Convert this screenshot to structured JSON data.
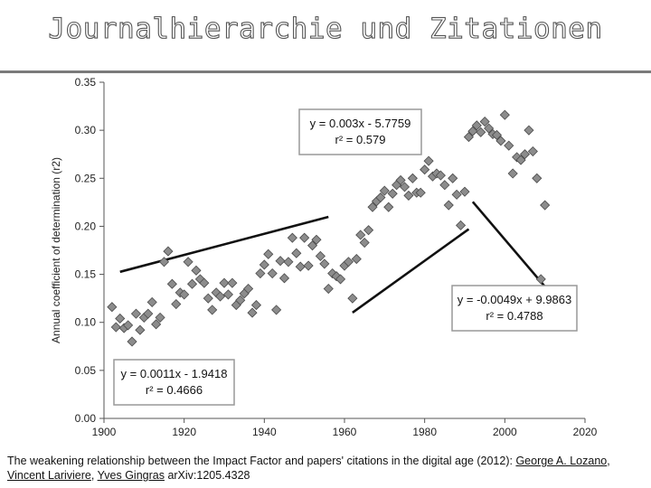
{
  "slide": {
    "title": "Journalhierarchie und Zitationen"
  },
  "caption": {
    "text": "The weakening relationship between the Impact Factor and papers' citations in the digital age (2012): ",
    "link_text": "George A. Lozano",
    "sep1": ", ",
    "author2": "Vincent Lariviere",
    "sep2": ", ",
    "author3": "Yves Gingras",
    "suffix": " arXiv:1205.4328"
  },
  "chart_data": {
    "type": "scatter",
    "title": "",
    "xlabel": "",
    "ylabel": "Annual coefficient of determination (r2)",
    "xlim": [
      1900,
      2020
    ],
    "ylim": [
      0.0,
      0.35
    ],
    "x_ticks": [
      "1900",
      "1920",
      "1940",
      "1960",
      "1980",
      "2000",
      "2020"
    ],
    "y_ticks": [
      "0.00",
      "0.05",
      "0.10",
      "0.15",
      "0.20",
      "0.25",
      "0.30",
      "0.35"
    ],
    "grid": false,
    "marker_color": "#8c8c8c",
    "points": [
      [
        1902,
        0.116
      ],
      [
        1903,
        0.095
      ],
      [
        1904,
        0.104
      ],
      [
        1905,
        0.094
      ],
      [
        1906,
        0.097
      ],
      [
        1907,
        0.08
      ],
      [
        1908,
        0.109
      ],
      [
        1909,
        0.092
      ],
      [
        1910,
        0.105
      ],
      [
        1911,
        0.109
      ],
      [
        1912,
        0.121
      ],
      [
        1913,
        0.098
      ],
      [
        1914,
        0.105
      ],
      [
        1915,
        0.163
      ],
      [
        1916,
        0.174
      ],
      [
        1917,
        0.14
      ],
      [
        1918,
        0.119
      ],
      [
        1919,
        0.131
      ],
      [
        1920,
        0.129
      ],
      [
        1921,
        0.163
      ],
      [
        1922,
        0.14
      ],
      [
        1923,
        0.154
      ],
      [
        1924,
        0.145
      ],
      [
        1925,
        0.141
      ],
      [
        1926,
        0.125
      ],
      [
        1927,
        0.113
      ],
      [
        1928,
        0.131
      ],
      [
        1929,
        0.127
      ],
      [
        1930,
        0.141
      ],
      [
        1931,
        0.129
      ],
      [
        1932,
        0.141
      ],
      [
        1933,
        0.118
      ],
      [
        1934,
        0.123
      ],
      [
        1935,
        0.13
      ],
      [
        1936,
        0.135
      ],
      [
        1937,
        0.11
      ],
      [
        1938,
        0.118
      ],
      [
        1939,
        0.151
      ],
      [
        1940,
        0.16
      ],
      [
        1941,
        0.171
      ],
      [
        1942,
        0.151
      ],
      [
        1943,
        0.113
      ],
      [
        1944,
        0.164
      ],
      [
        1945,
        0.146
      ],
      [
        1946,
        0.163
      ],
      [
        1947,
        0.188
      ],
      [
        1948,
        0.172
      ],
      [
        1949,
        0.158
      ],
      [
        1950,
        0.188
      ],
      [
        1951,
        0.159
      ],
      [
        1952,
        0.18
      ],
      [
        1953,
        0.186
      ],
      [
        1954,
        0.169
      ],
      [
        1955,
        0.161
      ],
      [
        1956,
        0.135
      ],
      [
        1957,
        0.151
      ],
      [
        1958,
        0.148
      ],
      [
        1959,
        0.145
      ],
      [
        1960,
        0.159
      ],
      [
        1961,
        0.163
      ],
      [
        1962,
        0.125
      ],
      [
        1963,
        0.166
      ],
      [
        1964,
        0.191
      ],
      [
        1965,
        0.183
      ],
      [
        1966,
        0.196
      ],
      [
        1967,
        0.22
      ],
      [
        1968,
        0.226
      ],
      [
        1969,
        0.23
      ],
      [
        1970,
        0.237
      ],
      [
        1971,
        0.22
      ],
      [
        1972,
        0.234
      ],
      [
        1973,
        0.243
      ],
      [
        1974,
        0.248
      ],
      [
        1975,
        0.241
      ],
      [
        1976,
        0.232
      ],
      [
        1977,
        0.25
      ],
      [
        1978,
        0.235
      ],
      [
        1979,
        0.235
      ],
      [
        1980,
        0.259
      ],
      [
        1981,
        0.268
      ],
      [
        1982,
        0.252
      ],
      [
        1983,
        0.255
      ],
      [
        1984,
        0.253
      ],
      [
        1985,
        0.243
      ],
      [
        1986,
        0.222
      ],
      [
        1987,
        0.25
      ],
      [
        1988,
        0.233
      ],
      [
        1989,
        0.201
      ],
      [
        1990,
        0.236
      ],
      [
        1991,
        0.293
      ],
      [
        1992,
        0.299
      ],
      [
        1993,
        0.305
      ],
      [
        1994,
        0.298
      ],
      [
        1995,
        0.309
      ],
      [
        1996,
        0.302
      ],
      [
        1997,
        0.296
      ],
      [
        1998,
        0.295
      ],
      [
        1999,
        0.289
      ],
      [
        2000,
        0.316
      ],
      [
        2001,
        0.284
      ],
      [
        2002,
        0.255
      ],
      [
        2003,
        0.272
      ],
      [
        2004,
        0.269
      ],
      [
        2005,
        0.275
      ],
      [
        2006,
        0.3
      ],
      [
        2007,
        0.278
      ],
      [
        2008,
        0.25
      ],
      [
        2009,
        0.145
      ],
      [
        2010,
        0.222
      ]
    ],
    "fit_lines": [
      {
        "x_range": [
          1904,
          1956
        ],
        "slope": 0.0011,
        "intercept": -1.9418,
        "equation": "y = 0.0011x - 1.9418",
        "r2_label": "r² = 0.4666",
        "box_position": "bottom-left"
      },
      {
        "x_range": [
          1962,
          1991
        ],
        "slope": 0.003,
        "intercept": -5.7759,
        "equation": "y = 0.003x - 5.7759",
        "r2_label": "r² = 0.579",
        "box_position": "top-center"
      },
      {
        "x_range": [
          1992,
          2010
        ],
        "slope": -0.0049,
        "intercept": 9.9863,
        "equation": "y = -0.0049x + 9.9863",
        "r2_label": "r² = 0.4788",
        "box_position": "middle-right"
      }
    ]
  }
}
